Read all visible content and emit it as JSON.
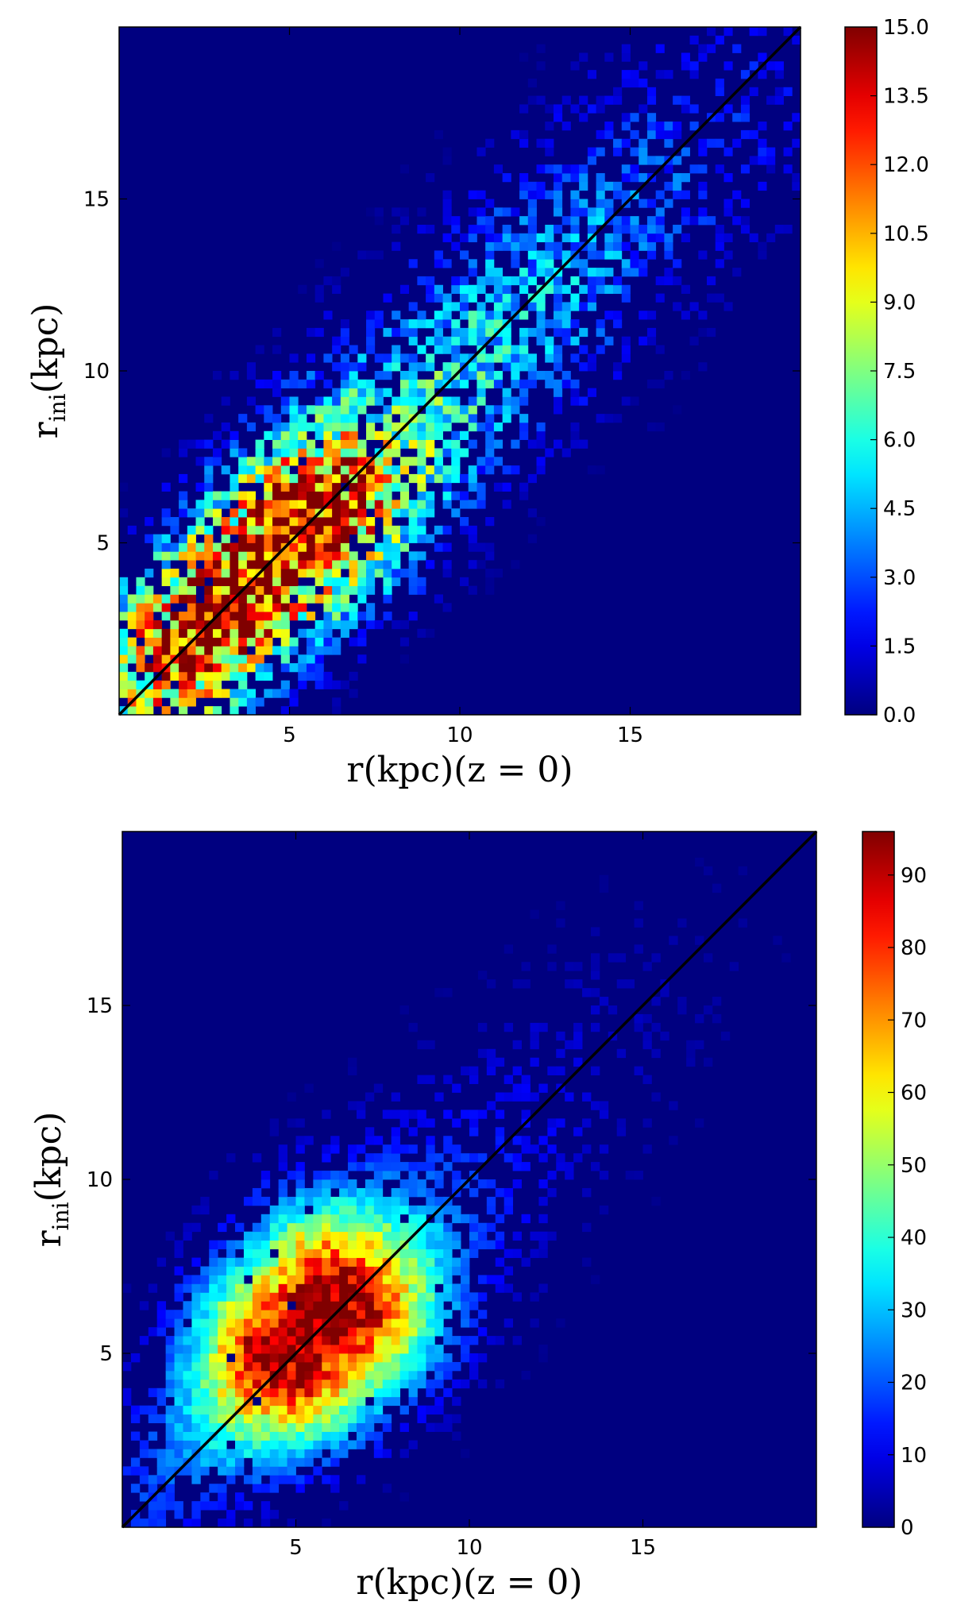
{
  "chart_data": [
    {
      "type": "heatmap",
      "xlabel": "r(kpc)(z = 0)",
      "ylabel_main": "r",
      "ylabel_sub": "ini",
      "ylabel_rest": "(kpc)",
      "xlim": [
        0,
        20
      ],
      "ylim": [
        0,
        20
      ],
      "xticks": [
        5,
        10,
        15
      ],
      "yticks": [
        5,
        10,
        15
      ],
      "colorbar": {
        "min": 0,
        "max": 15,
        "ticks": [
          "0.0",
          "1.5",
          "3.0",
          "4.5",
          "6.0",
          "7.5",
          "9.0",
          "10.5",
          "12.0",
          "13.5",
          "15.0"
        ],
        "colormap": "jet"
      },
      "reference_line": {
        "from": [
          0,
          0
        ],
        "to": [
          20,
          20
        ],
        "color": "#000000"
      },
      "distribution": {
        "bins": 80,
        "peak_x": 3.5,
        "peak_y": 2.5,
        "peak_count": 15
      }
    },
    {
      "type": "heatmap",
      "xlabel": "r(kpc)(z = 0)",
      "ylabel_main": "r",
      "ylabel_sub": "ini",
      "ylabel_rest": "(kpc)",
      "xlim": [
        0,
        20
      ],
      "ylim": [
        0,
        20
      ],
      "xticks": [
        5,
        10,
        15
      ],
      "yticks": [
        5,
        10,
        15
      ],
      "colorbar": {
        "min": 0,
        "max": 96,
        "ticks": [
          "0",
          "10",
          "20",
          "30",
          "40",
          "50",
          "60",
          "70",
          "80",
          "90"
        ],
        "colormap": "jet"
      },
      "reference_line": {
        "from": [
          0,
          0
        ],
        "to": [
          20,
          20
        ],
        "color": "#000000"
      },
      "distribution": {
        "bins": 80,
        "peak_x": 5.5,
        "peak_y": 5.5,
        "peak_count": 96
      }
    }
  ]
}
